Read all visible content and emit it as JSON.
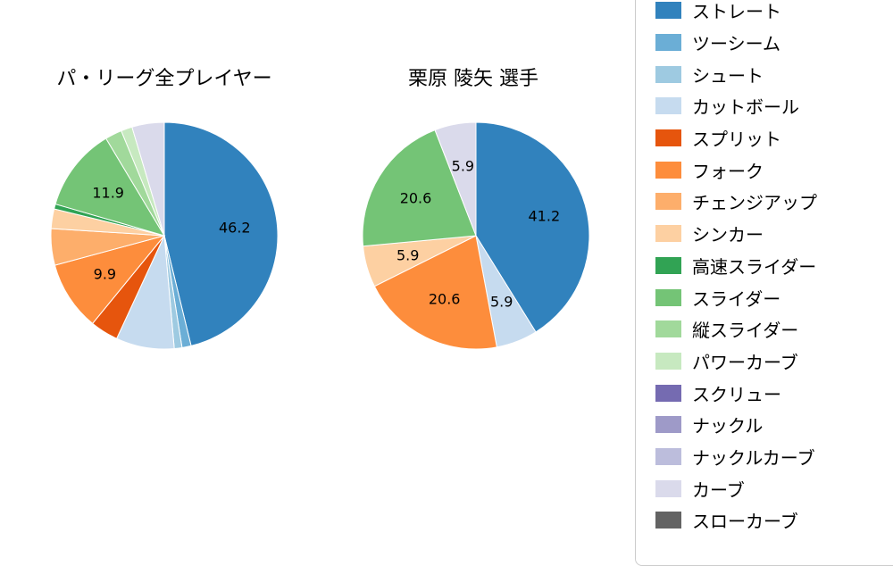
{
  "page": {
    "background": "#ffffff"
  },
  "chart_data": [
    {
      "type": "pie",
      "title": "パ・リーグ全プレイヤー",
      "start_angle": "top",
      "direction": "clockwise",
      "value_unit": "percent",
      "slices": [
        {
          "name": "ストレート",
          "value": 46.2,
          "label": "46.2"
        },
        {
          "name": "ツーシーム",
          "value": 1.3,
          "label": ""
        },
        {
          "name": "シュート",
          "value": 1.1,
          "label": ""
        },
        {
          "name": "カットボール",
          "value": 8.3,
          "label": ""
        },
        {
          "name": "スプリット",
          "value": 4.0,
          "label": ""
        },
        {
          "name": "フォーク",
          "value": 9.9,
          "label": "9.9"
        },
        {
          "name": "チェンジアップ",
          "value": 5.2,
          "label": ""
        },
        {
          "name": "シンカー",
          "value": 2.8,
          "label": ""
        },
        {
          "name": "高速スライダー",
          "value": 0.7,
          "label": ""
        },
        {
          "name": "スライダー",
          "value": 11.9,
          "label": "11.9"
        },
        {
          "name": "縦スライダー",
          "value": 2.4,
          "label": ""
        },
        {
          "name": "パワーカーブ",
          "value": 1.6,
          "label": ""
        },
        {
          "name": "カーブ",
          "value": 4.6,
          "label": ""
        }
      ]
    },
    {
      "type": "pie",
      "title": "栗原 陵矢 選手",
      "start_angle": "top",
      "direction": "clockwise",
      "value_unit": "percent",
      "slices": [
        {
          "name": "ストレート",
          "value": 41.2,
          "label": "41.2"
        },
        {
          "name": "カットボール",
          "value": 5.9,
          "label": "5.9"
        },
        {
          "name": "フォーク",
          "value": 20.6,
          "label": "20.6"
        },
        {
          "name": "シンカー",
          "value": 5.9,
          "label": "5.9"
        },
        {
          "name": "スライダー",
          "value": 20.6,
          "label": "20.6"
        },
        {
          "name": "カーブ",
          "value": 5.9,
          "label": "5.9"
        }
      ]
    }
  ],
  "legend": {
    "position": "right",
    "border_color": "#cccccc",
    "items": [
      {
        "label": "ストレート",
        "color": "#3182bd"
      },
      {
        "label": "ツーシーム",
        "color": "#6baed6"
      },
      {
        "label": "シュート",
        "color": "#9ecae1"
      },
      {
        "label": "カットボール",
        "color": "#c6dbef"
      },
      {
        "label": "スプリット",
        "color": "#e6550d"
      },
      {
        "label": "フォーク",
        "color": "#fd8d3c"
      },
      {
        "label": "チェンジアップ",
        "color": "#fdae6b"
      },
      {
        "label": "シンカー",
        "color": "#fdd0a2"
      },
      {
        "label": "高速スライダー",
        "color": "#31a354"
      },
      {
        "label": "スライダー",
        "color": "#74c476"
      },
      {
        "label": "縦スライダー",
        "color": "#a1d99b"
      },
      {
        "label": "パワーカーブ",
        "color": "#c7e9c0"
      },
      {
        "label": "スクリュー",
        "color": "#756bb1"
      },
      {
        "label": "ナックル",
        "color": "#9e9ac8"
      },
      {
        "label": "ナックルカーブ",
        "color": "#bcbddc"
      },
      {
        "label": "カーブ",
        "color": "#dadaeb"
      },
      {
        "label": "スローカーブ",
        "color": "#636363"
      }
    ]
  }
}
